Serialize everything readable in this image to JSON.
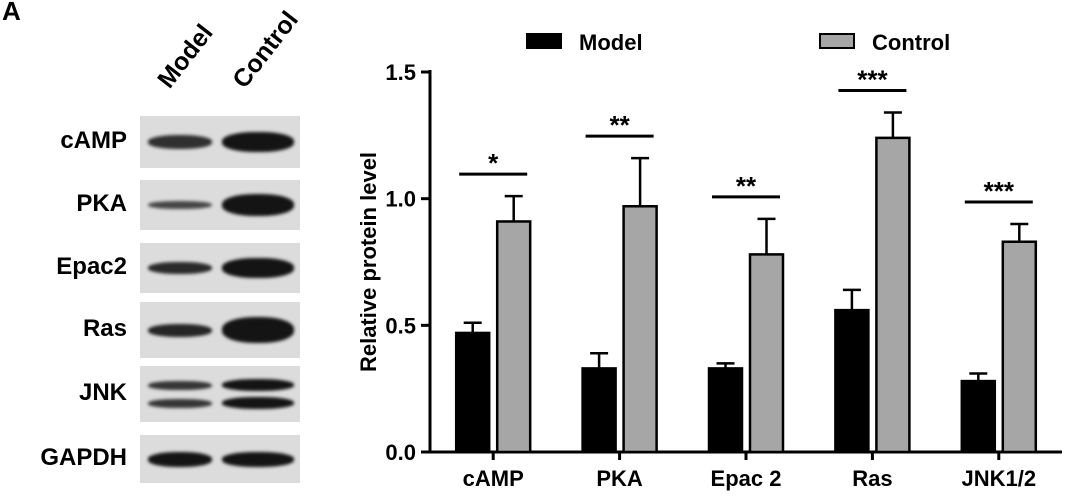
{
  "panel_label": "A",
  "blot": {
    "lanes": [
      "Model",
      "Control"
    ],
    "rows": [
      {
        "name": "cAMP"
      },
      {
        "name": "PKA"
      },
      {
        "name": "Epac2"
      },
      {
        "name": "Ras"
      },
      {
        "name": "JNK"
      },
      {
        "name": "GAPDH"
      }
    ]
  },
  "chart_data": {
    "type": "bar",
    "categories": [
      "cAMP",
      "PKA",
      "Epac 2",
      "Ras",
      "JNK1/2"
    ],
    "series": [
      {
        "name": "Model",
        "values": [
          0.47,
          0.33,
          0.33,
          0.56,
          0.28
        ],
        "errors": [
          0.04,
          0.06,
          0.02,
          0.08,
          0.03
        ],
        "color": "#000000"
      },
      {
        "name": "Control",
        "values": [
          0.91,
          0.97,
          0.78,
          1.24,
          0.83
        ],
        "errors": [
          0.1,
          0.19,
          0.14,
          0.1,
          0.07
        ],
        "color": "#a6a6a6"
      }
    ],
    "significance": [
      "*",
      "**",
      "**",
      "***",
      "***"
    ],
    "ylabel": "Relative protein level",
    "xlabel": "",
    "ylim": [
      0,
      1.5
    ],
    "yticks": [
      "0.0",
      "0.5",
      "1.0",
      "1.5"
    ],
    "legend_position": "top"
  }
}
